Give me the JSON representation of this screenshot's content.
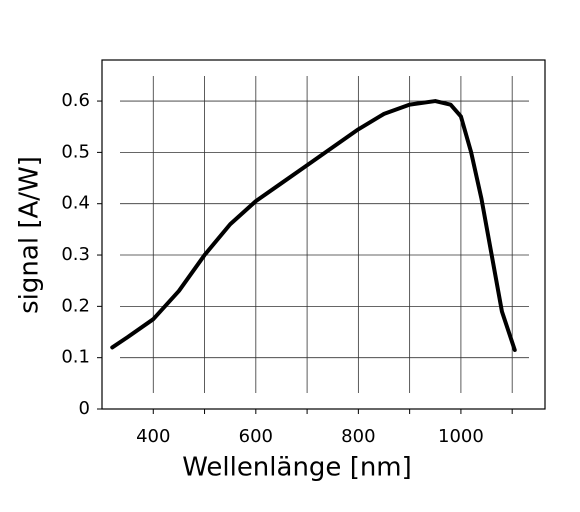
{
  "chart_data": {
    "type": "line",
    "xlabel": "Wellenlänge [nm]",
    "ylabel": "signal [A/W]",
    "x": [
      320,
      350,
      400,
      450,
      500,
      550,
      600,
      650,
      700,
      750,
      800,
      850,
      900,
      950,
      980,
      1000,
      1020,
      1040,
      1060,
      1080,
      1105
    ],
    "series": [
      {
        "color": "#000000",
        "values": [
          0.12,
          0.14,
          0.175,
          0.23,
          0.3,
          0.36,
          0.405,
          0.44,
          0.475,
          0.51,
          0.545,
          0.575,
          0.593,
          0.6,
          0.593,
          0.57,
          0.5,
          0.41,
          0.3,
          0.19,
          0.115
        ]
      }
    ],
    "xlim": [
      300,
      1164
    ],
    "ylim": [
      0,
      0.68
    ],
    "xticks": [
      400,
      600,
      800,
      1000
    ],
    "x_minor_ticks": [
      500,
      700,
      900,
      1100
    ],
    "yticks": [
      0,
      0.1,
      0.2,
      0.3,
      0.4,
      0.5,
      0.6
    ],
    "grid": true
  }
}
